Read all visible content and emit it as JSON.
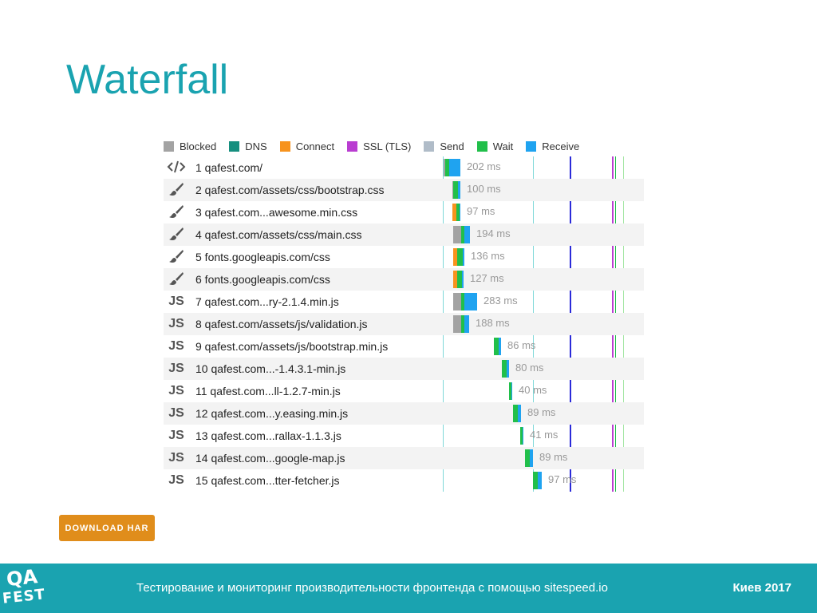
{
  "slide": {
    "title": "Waterfall",
    "download_label": "DOWNLOAD HAR",
    "footer_text": "Тестирование и мониторинг производительности фронтенда с помощью sitespeed.io",
    "footer_city": "Киев 2017",
    "logo_qa": "QA",
    "logo_fest": "FEST"
  },
  "legend": [
    {
      "label": "Blocked",
      "color": "#a3a3a3"
    },
    {
      "label": "DNS",
      "color": "#168f7f"
    },
    {
      "label": "Connect",
      "color": "#f7931e"
    },
    {
      "label": "SSL (TLS)",
      "color": "#b93dd1"
    },
    {
      "label": "Send",
      "color": "#b0bcc8"
    },
    {
      "label": "Wait",
      "color": "#21bf4a"
    },
    {
      "label": "Receive",
      "color": "#1fa3f0"
    }
  ],
  "markers": [
    {
      "color": "#7fd8d8"
    },
    {
      "color": "#7fd8d8"
    },
    {
      "color": "#2b2bd9"
    },
    {
      "color": "#b93dd1"
    },
    {
      "color": "#21bf4a"
    },
    {
      "color": "#a6e6a6"
    }
  ],
  "entries": [
    {
      "n": 1,
      "url": "qafest.com/",
      "icon": "html",
      "duration": "202 ms",
      "timings": [
        [
          "Blocked",
          2
        ],
        [
          "Wait",
          5
        ],
        [
          "Receive",
          14
        ]
      ]
    },
    {
      "n": 2,
      "url": "qafest.com/assets/css/bootstrap.css",
      "icon": "css",
      "duration": "100 ms",
      "timings": [
        [
          "Blocked",
          1
        ],
        [
          "Wait",
          6
        ],
        [
          "Receive",
          3
        ]
      ]
    },
    {
      "n": 3,
      "url": "qafest.com...awesome.min.css",
      "icon": "css",
      "duration": "97 ms",
      "timings": [
        [
          "Connect",
          5
        ],
        [
          "Wait",
          4
        ],
        [
          "Receive",
          1
        ]
      ]
    },
    {
      "n": 4,
      "url": "qafest.com/assets/css/main.css",
      "icon": "css",
      "duration": "194 ms",
      "timings": [
        [
          "Blocked",
          10
        ],
        [
          "Wait",
          4
        ],
        [
          "Receive",
          7
        ]
      ]
    },
    {
      "n": 5,
      "url": "fonts.googleapis.com/css",
      "icon": "css",
      "duration": "136 ms",
      "timings": [
        [
          "Connect",
          5
        ],
        [
          "Wait",
          7
        ],
        [
          "Receive",
          2
        ]
      ]
    },
    {
      "n": 6,
      "url": "fonts.googleapis.com/css",
      "icon": "css",
      "duration": "127 ms",
      "timings": [
        [
          "Connect",
          5
        ],
        [
          "Wait",
          6
        ],
        [
          "Receive",
          2
        ]
      ]
    },
    {
      "n": 7,
      "url": "qafest.com...ry-2.1.4.min.js",
      "icon": "js",
      "duration": "283 ms",
      "timings": [
        [
          "Blocked",
          10
        ],
        [
          "Wait",
          4
        ],
        [
          "Receive",
          16
        ]
      ]
    },
    {
      "n": 8,
      "url": "qafest.com/assets/js/validation.js",
      "icon": "js",
      "duration": "188 ms",
      "timings": [
        [
          "Blocked",
          10
        ],
        [
          "Wait",
          4
        ],
        [
          "Receive",
          6
        ]
      ]
    },
    {
      "n": 9,
      "url": "qafest.com/assets/js/bootstrap.min.js",
      "icon": "js",
      "duration": "86 ms",
      "timings": [
        [
          "Wait",
          6
        ],
        [
          "Receive",
          3
        ]
      ]
    },
    {
      "n": 10,
      "url": "qafest.com...-1.4.3.1-min.js",
      "icon": "js",
      "duration": "80 ms",
      "timings": [
        [
          "Wait",
          6
        ],
        [
          "Receive",
          3
        ]
      ]
    },
    {
      "n": 11,
      "url": "qafest.com...ll-1.2.7-min.js",
      "icon": "js",
      "duration": "40 ms",
      "timings": [
        [
          "Wait",
          3
        ],
        [
          "Receive",
          1
        ]
      ]
    },
    {
      "n": 12,
      "url": "qafest.com...y.easing.min.js",
      "icon": "js",
      "duration": "89 ms",
      "timings": [
        [
          "Wait",
          6
        ],
        [
          "Receive",
          4
        ]
      ]
    },
    {
      "n": 13,
      "url": "qafest.com...rallax-1.1.3.js",
      "icon": "js",
      "duration": "41 ms",
      "timings": [
        [
          "Wait",
          3
        ],
        [
          "Receive",
          1
        ]
      ]
    },
    {
      "n": 14,
      "url": "qafest.com...google-map.js",
      "icon": "js",
      "duration": "89 ms",
      "timings": [
        [
          "Wait",
          6
        ],
        [
          "Receive",
          4
        ]
      ]
    },
    {
      "n": 15,
      "url": "qafest.com...tter-fetcher.js",
      "icon": "js",
      "duration": "97 ms",
      "timings": [
        [
          "Wait",
          6
        ],
        [
          "Receive",
          5
        ]
      ]
    }
  ]
}
